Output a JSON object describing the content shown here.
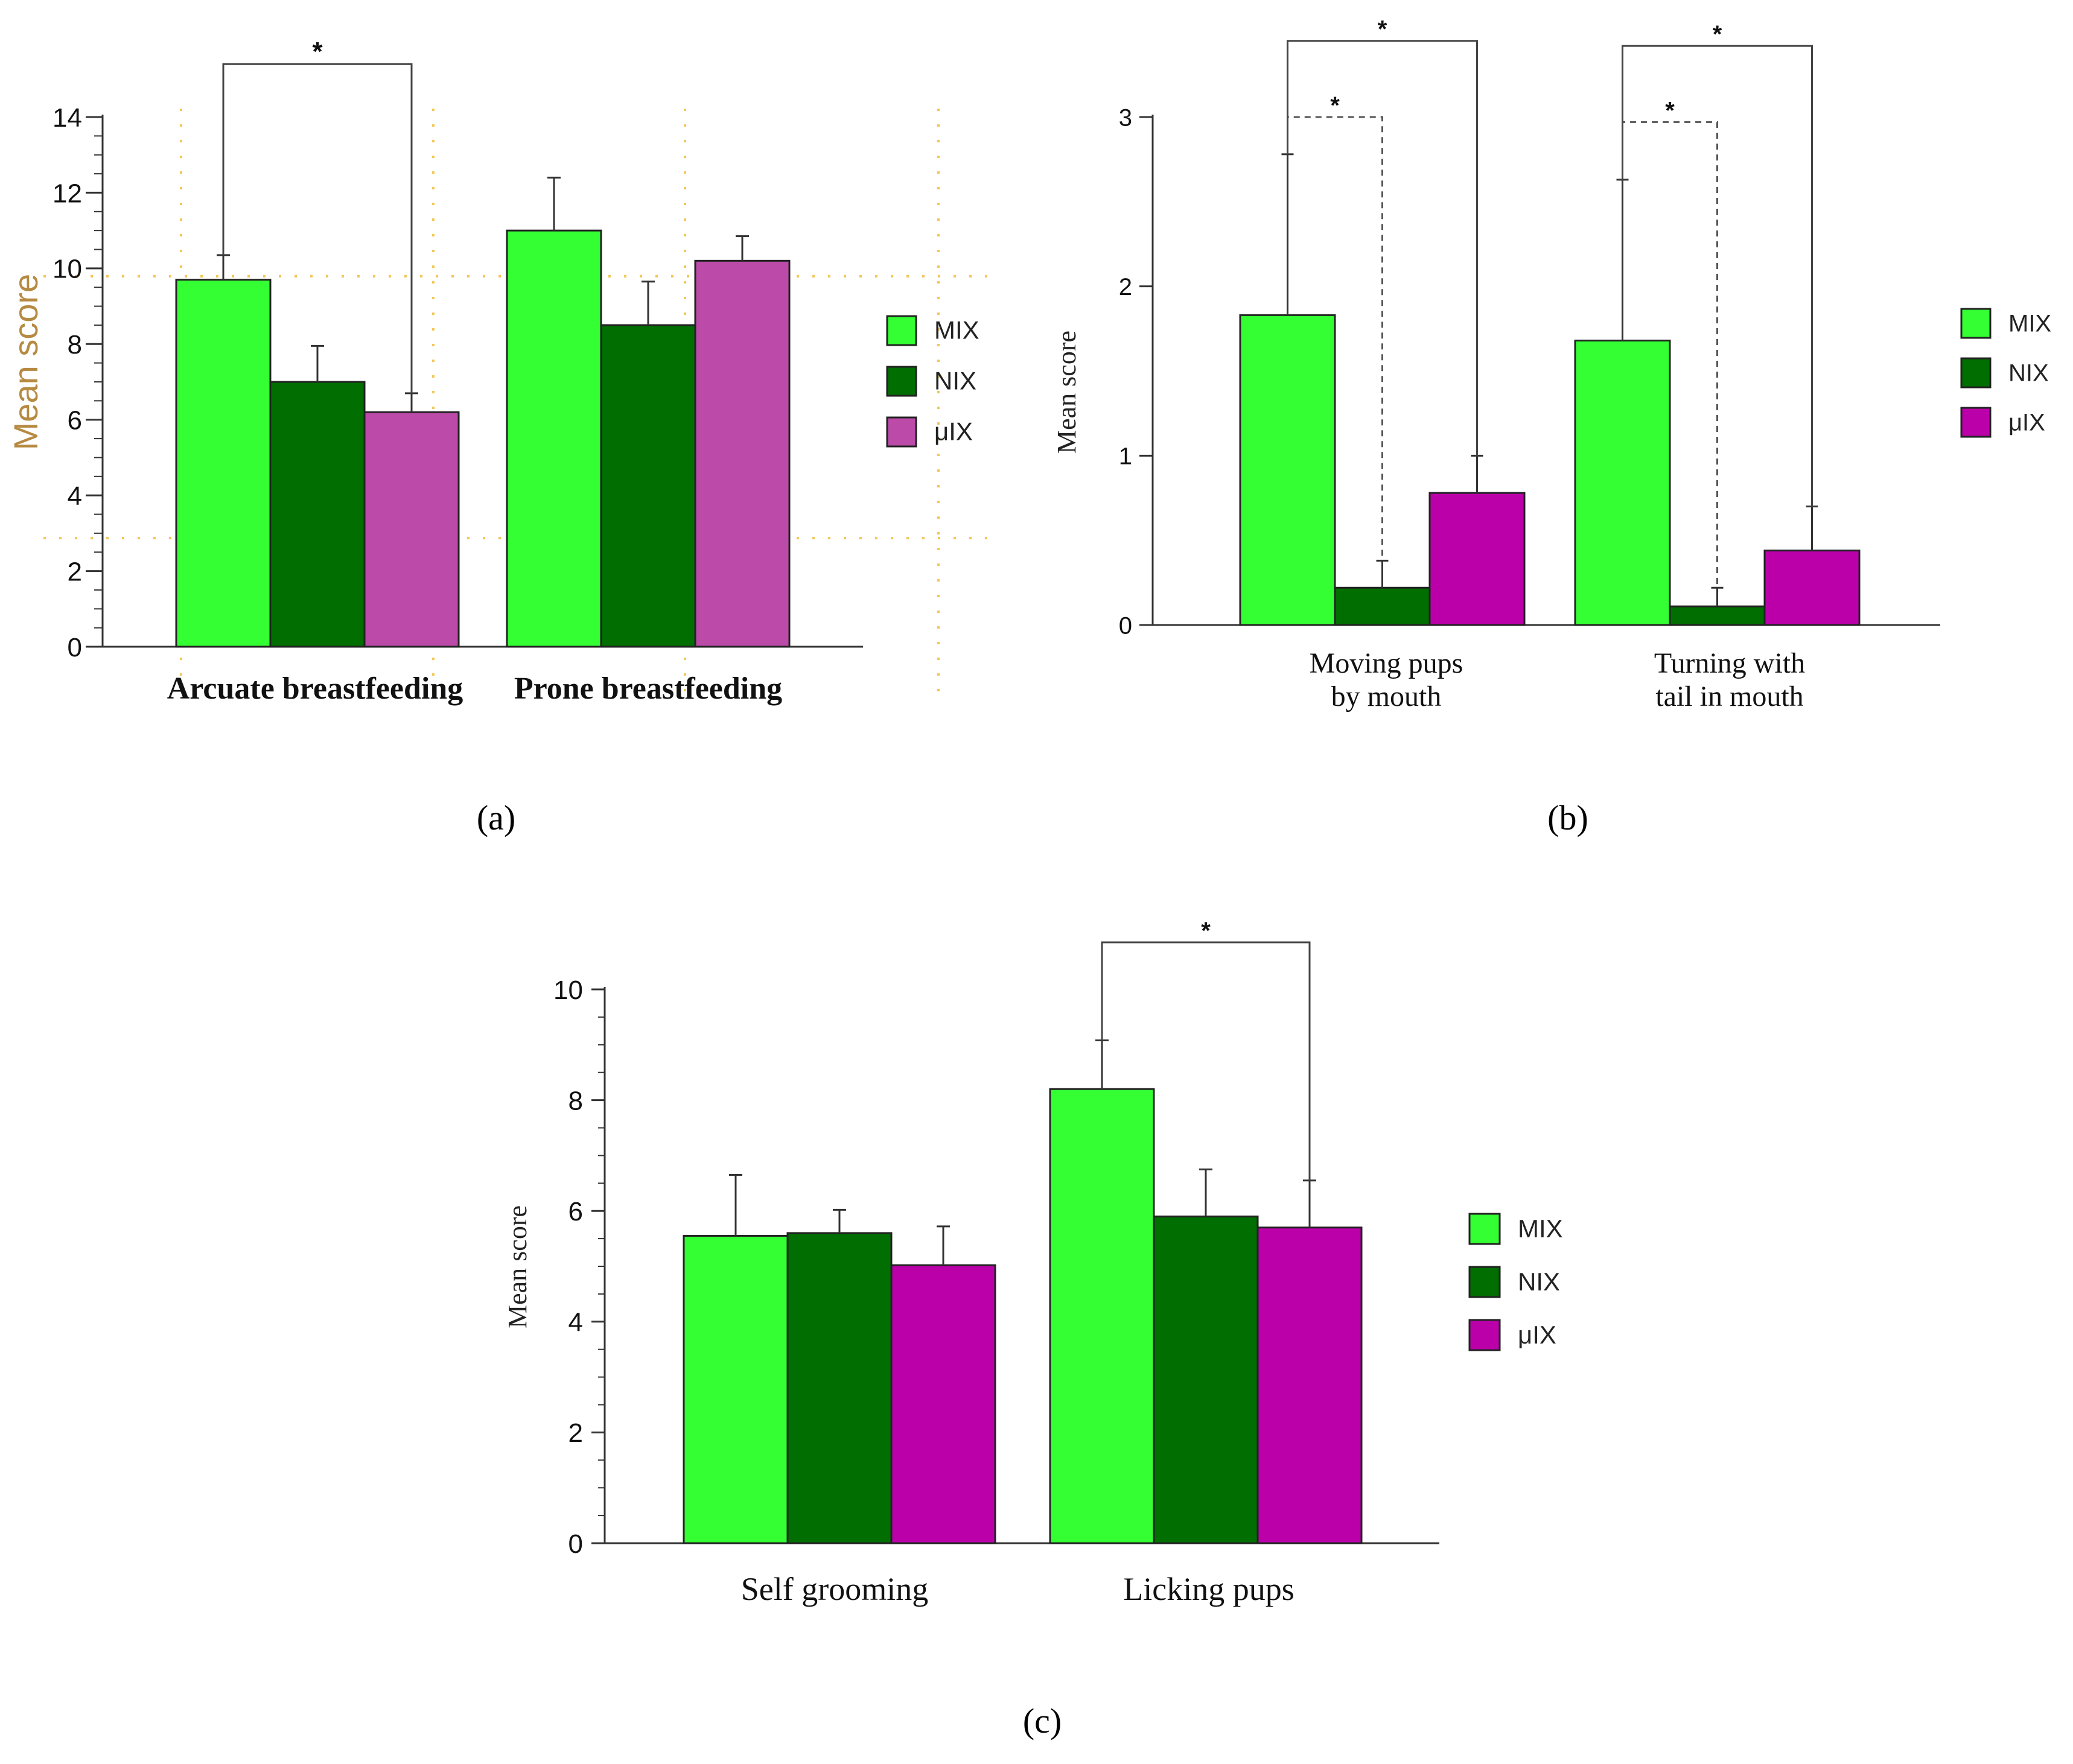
{
  "panel_labels": [
    "(a)",
    "(b)",
    "(c)"
  ],
  "chart_data": [
    {
      "type": "bar",
      "panel": "(a)",
      "title": "",
      "xlabel": "",
      "ylabel": "Mean score",
      "ylim": [
        0,
        14
      ],
      "yticks": [
        0,
        2,
        4,
        6,
        8,
        10,
        12,
        14
      ],
      "ytick_labels": [
        "0",
        "2",
        "4",
        "6",
        "8",
        "10",
        "12",
        "14"
      ],
      "categories": [
        "Arcuate breastfeeding",
        "Prone breastfeeding"
      ],
      "series": [
        {
          "name": "MIX",
          "color": "#33ff33",
          "values": [
            9.7,
            11.0
          ],
          "errors": [
            0.65,
            1.4
          ]
        },
        {
          "name": "NIX",
          "color": "#006e00",
          "values": [
            7.0,
            8.5
          ],
          "errors": [
            0.95,
            1.15
          ]
        },
        {
          "name": "μIX",
          "color": "#bb4aa8",
          "values": [
            6.2,
            10.2
          ],
          "errors": [
            0.5,
            0.65
          ]
        }
      ],
      "significance": [
        {
          "category": 0,
          "from_series": 0,
          "to_series": 2,
          "label": "*",
          "style": "solid",
          "y": 15.4
        }
      ],
      "grid": "dotted",
      "legend": "right"
    },
    {
      "type": "bar",
      "panel": "(b)",
      "title": "",
      "xlabel": "",
      "ylabel": "Mean score",
      "ylim": [
        0,
        3
      ],
      "yticks": [
        0,
        1,
        2,
        3
      ],
      "ytick_labels": [
        "0",
        "1",
        "2",
        "3"
      ],
      "categories": [
        "Moving pups\nby mouth",
        "Turning with\ntail in mouth"
      ],
      "series": [
        {
          "name": "MIX",
          "color": "#33ff33",
          "values": [
            1.83,
            1.68
          ],
          "errors": [
            0.95,
            0.95
          ]
        },
        {
          "name": "NIX",
          "color": "#006e00",
          "values": [
            0.22,
            0.11
          ],
          "errors": [
            0.16,
            0.11
          ]
        },
        {
          "name": "μIX",
          "color": "#bb00aa",
          "values": [
            0.78,
            0.44
          ],
          "errors": [
            0.22,
            0.26
          ]
        }
      ],
      "significance": [
        {
          "category": 0,
          "from_series": 0,
          "to_series": 1,
          "label": "*",
          "style": "dashed",
          "y": 3.0
        },
        {
          "category": 0,
          "from_series": 0,
          "to_series": 2,
          "label": "*",
          "style": "solid",
          "y": 3.45
        },
        {
          "category": 1,
          "from_series": 0,
          "to_series": 1,
          "label": "*",
          "style": "dashed",
          "y": 2.97
        },
        {
          "category": 1,
          "from_series": 0,
          "to_series": 2,
          "label": "*",
          "style": "solid",
          "y": 3.42
        }
      ],
      "grid": "off",
      "legend": "right"
    },
    {
      "type": "bar",
      "panel": "(c)",
      "title": "",
      "xlabel": "",
      "ylabel": "Mean score",
      "ylim": [
        0,
        10
      ],
      "yticks": [
        0,
        2,
        4,
        6,
        8,
        10
      ],
      "ytick_labels": [
        "0",
        "2",
        "4",
        "6",
        "8",
        "10"
      ],
      "categories": [
        "Self grooming",
        "Licking pups"
      ],
      "series": [
        {
          "name": "MIX",
          "color": "#33ff33",
          "values": [
            5.55,
            8.2
          ],
          "errors": [
            1.1,
            0.88
          ]
        },
        {
          "name": "NIX",
          "color": "#006e00",
          "values": [
            5.6,
            5.9
          ],
          "errors": [
            0.42,
            0.85
          ]
        },
        {
          "name": "μIX",
          "color": "#bb00aa",
          "values": [
            5.02,
            5.7
          ],
          "errors": [
            0.7,
            0.85
          ]
        }
      ],
      "significance": [
        {
          "category": 1,
          "from_series": 0,
          "to_series": 2,
          "label": "*",
          "style": "solid",
          "y": 10.85
        }
      ],
      "grid": "off",
      "legend": "right"
    }
  ]
}
